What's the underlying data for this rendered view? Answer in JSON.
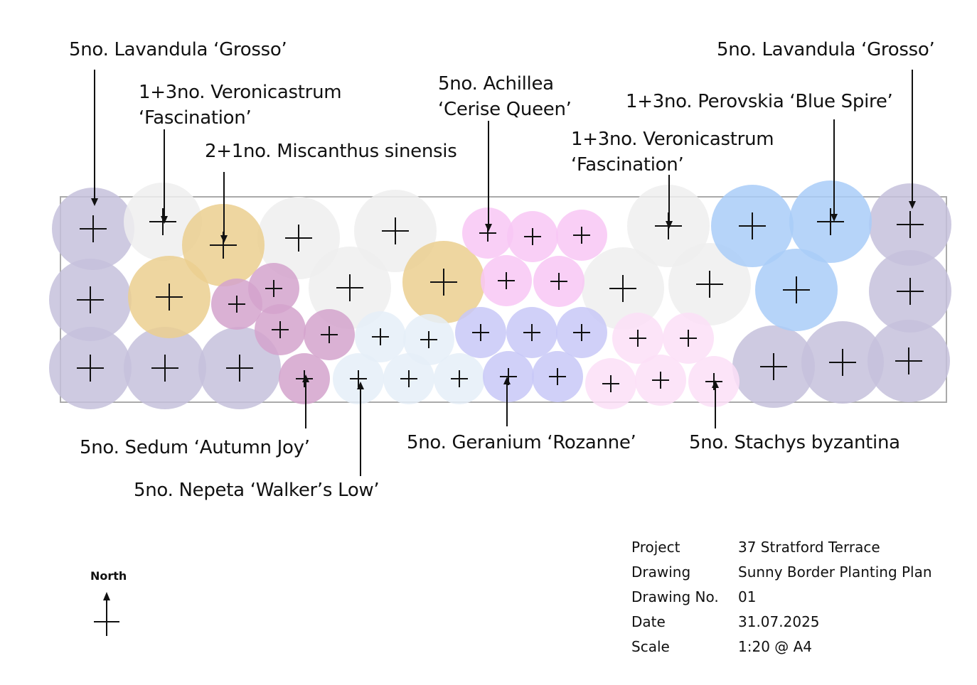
{
  "colors": {
    "lavandula": "#c6c1dc",
    "veronicastrum": "#efefef",
    "miscanthus": "#ebcf8f",
    "sedum": "#d4a3cc",
    "nepeta": "#e5eef8",
    "geranium": "#c8c8f7",
    "achillea": "#f8c7f4",
    "stachys": "#fbdff7",
    "perovskia": "#a9ccf8",
    "outline": "#aaaaaa",
    "ink": "#111111"
  },
  "labels": {
    "lavandula_left": "5no. Lavandula ‘Grosso’",
    "veronicastrum_left_1": "1+3no. Veronicastrum",
    "veronicastrum_left_2": "‘Fascination’",
    "miscanthus": "2+1no. Miscanthus sinensis",
    "achillea_1": "5no. Achillea",
    "achillea_2": "‘Cerise Queen’",
    "veronicastrum_right_1": "1+3no. Veronicastrum",
    "veronicastrum_right_2": "‘Fascination’",
    "perovskia": "1+3no. Perovskia ‘Blue Spire’",
    "lavandula_right": "5no. Lavandula ‘Grosso’",
    "sedum": "5no. Sedum ‘Autumn Joy’",
    "nepeta": "5no. Nepeta ‘Walker’s Low’",
    "geranium": "5no. Geranium ‘Rozanne’",
    "stachys": "5no. Stachys byzantina"
  },
  "north": "North",
  "title_block": [
    {
      "key": "Project",
      "value": "37 Stratford Terrace"
    },
    {
      "key": "Drawing",
      "value": "Sunny Border Planting Plan"
    },
    {
      "key": "Drawing No.",
      "value": "01"
    },
    {
      "key": "Date",
      "value": "31.07.2025"
    },
    {
      "key": "Scale",
      "value": "1:20 @ A4"
    }
  ]
}
